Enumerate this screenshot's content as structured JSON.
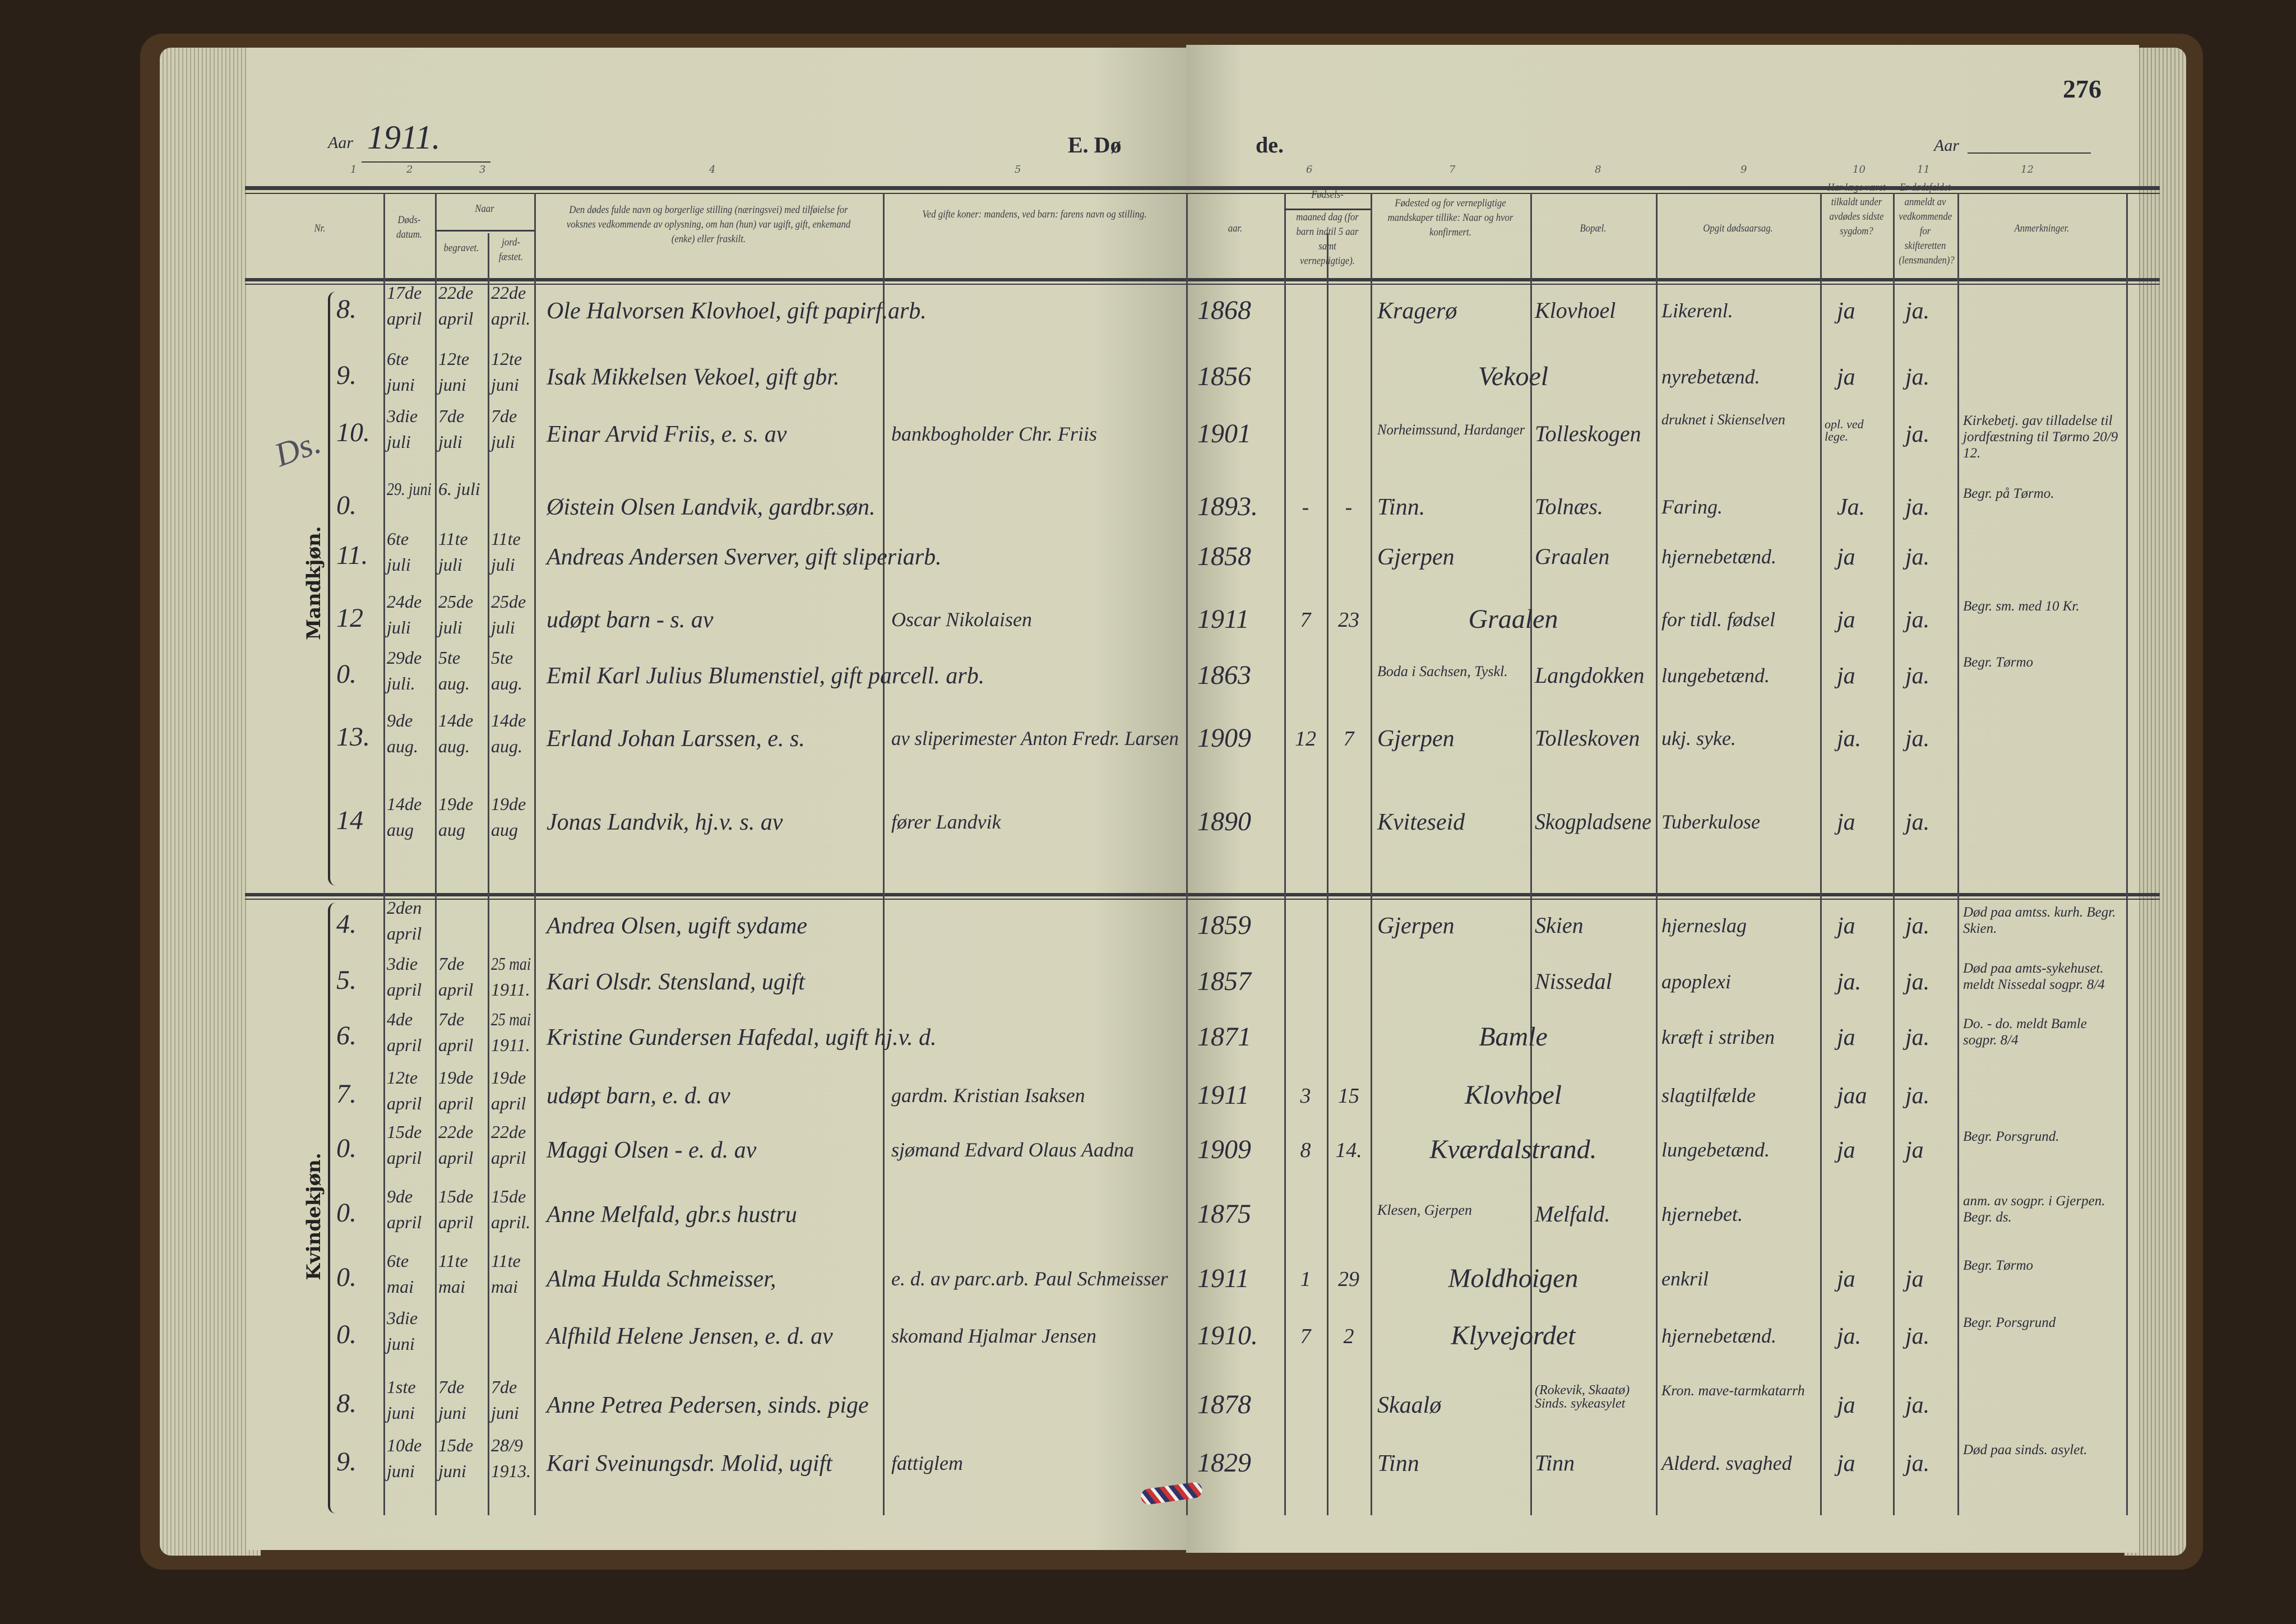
{
  "header": {
    "aar_label_left": "Aar",
    "year": "1911.",
    "title_part1": "E. Dø",
    "title_part2": "de.",
    "aar_label_right": "Aar",
    "page_number": "276",
    "column_numbers": [
      "1",
      "2",
      "3",
      "4",
      "5",
      "6",
      "7",
      "8",
      "9",
      "10",
      "11",
      "12"
    ]
  },
  "columns": {
    "nr": "Nr.",
    "death_date": "Døds-datum.",
    "when": "Naar",
    "buried": "begravet.",
    "confirmed": "jord-fæstet.",
    "name": "Den dødes fulde navn og borgerlige stilling (næringsvei) med tilføielse for voksnes vedkommende av oplysning, om han (hun) var ugift, gift, enkemand (enke) eller fraskilt.",
    "father": "Ved gifte koner: mandens, ved barn: farens navn og stilling.",
    "birth": "Fødsels-",
    "year": "aar.",
    "month_day": "maaned dag (for barn indtil 5 aar samt vernepligtige).",
    "birthplace": "Fødested og for vernepligtige mandskaper tillike: Naar og hvor konfirmert.",
    "residence": "Bopæl.",
    "cause": "Opgit dødsaarsag.",
    "doctor": "Har læge været tilkaldt under avdødes sidste sygdom?",
    "reported": "Er dødsfaldet anmeldt av vedkommende for skifteretten (lensmanden)?",
    "remarks": "Anmerkninger."
  },
  "sections": {
    "male_label": "Mandkjøn.",
    "female_label": "Kvindekjøn.",
    "margin_note": "Ds."
  },
  "male_rows": [
    {
      "nr": "8.",
      "death": [
        "17de",
        "april"
      ],
      "buried": [
        "22de",
        "april"
      ],
      "confirmed": [
        "22de",
        "april."
      ],
      "name": "Ole Halvorsen Klovhoel, gift papirf.arb.",
      "father": "",
      "year": "1868",
      "month": "",
      "day": "",
      "birthplace": "Kragerø",
      "residence": "Klovhoel",
      "cause": "Likerenl.",
      "doctor": "ja",
      "reported": "ja.",
      "remarks": ""
    },
    {
      "nr": "9.",
      "death": [
        "6te",
        "juni"
      ],
      "buried": [
        "12te",
        "juni"
      ],
      "confirmed": [
        "12te",
        "juni"
      ],
      "name": "Isak Mikkelsen Vekoel, gift gbr.",
      "father": "",
      "year": "1856",
      "month": "",
      "day": "",
      "place_span": "Vekoel",
      "cause": "nyrebetænd.",
      "doctor": "ja",
      "reported": "ja.",
      "remarks": ""
    },
    {
      "nr": "10.",
      "death": [
        "3die",
        "juli"
      ],
      "buried": [
        "7de",
        "juli"
      ],
      "confirmed": [
        "7de",
        "juli"
      ],
      "name": "Einar Arvid Friis, e. s. av",
      "father": "bankbogholder Chr. Friis",
      "year": "1901",
      "month": "",
      "day": "",
      "birthplace": "Norheimssund, Hardanger",
      "residence": "Tolleskogen",
      "cause": "druknet i Skienselven",
      "doctor": "opl. ved lege.",
      "reported": "ja.",
      "remarks": "Kirkebetj. gav tilladelse til jordfæstning til Tørmo 20/9 12."
    },
    {
      "nr": "0.",
      "death": [
        "29. juni",
        ""
      ],
      "buried": [
        "6. juli",
        ""
      ],
      "confirmed": [
        "",
        ""
      ],
      "name": "Øistein Olsen Landvik, gardbr.søn.",
      "father": "",
      "year": "1893.",
      "month": "-",
      "day": "-",
      "birthplace": "Tinn.",
      "residence": "Tolnæs.",
      "cause": "Faring.",
      "doctor": "Ja.",
      "reported": "ja.",
      "remarks": "Begr. på Tørmo."
    },
    {
      "nr": "11.",
      "death": [
        "6te",
        "juli"
      ],
      "buried": [
        "11te",
        "juli"
      ],
      "confirmed": [
        "11te",
        "juli"
      ],
      "name": "Andreas Andersen Sverver, gift sliperiarb.",
      "father": "",
      "year": "1858",
      "month": "",
      "day": "",
      "birthplace": "Gjerpen",
      "residence": "Graalen",
      "cause": "hjernebetænd.",
      "doctor": "ja",
      "reported": "ja.",
      "remarks": ""
    },
    {
      "nr": "12",
      "death": [
        "24de",
        "juli"
      ],
      "buried": [
        "25de",
        "juli"
      ],
      "confirmed": [
        "25de",
        "juli"
      ],
      "name": "udøpt barn - s. av",
      "father": "Oscar Nikolaisen",
      "year": "1911",
      "month": "7",
      "day": "23",
      "place_span": "Graalen",
      "cause": "for tidl. fødsel",
      "doctor": "ja",
      "reported": "ja.",
      "remarks": "Begr. sm. med 10 Kr."
    },
    {
      "nr": "0.",
      "death": [
        "29de",
        "juli."
      ],
      "buried": [
        "5te",
        "aug."
      ],
      "confirmed": [
        "5te",
        "aug."
      ],
      "name": "Emil Karl Julius Blumenstiel, gift parcell. arb.",
      "father": "",
      "year": "1863",
      "month": "",
      "day": "",
      "birthplace": "Boda i Sachsen, Tyskl.",
      "residence": "Langdokken",
      "cause": "lungebetænd.",
      "doctor": "ja",
      "reported": "ja.",
      "remarks": "Begr. Tørmo"
    },
    {
      "nr": "13.",
      "death": [
        "9de",
        "aug."
      ],
      "buried": [
        "14de",
        "aug."
      ],
      "confirmed": [
        "14de",
        "aug."
      ],
      "name": "Erland Johan Larssen, e. s.",
      "father": "av sliperimester Anton Fredr. Larsen",
      "year": "1909",
      "month": "12",
      "day": "7",
      "birthplace": "Gjerpen",
      "residence": "Tolleskoven",
      "cause": "ukj. syke.",
      "doctor": "ja.",
      "reported": "ja.",
      "remarks": ""
    },
    {
      "nr": "14",
      "death": [
        "14de",
        "aug"
      ],
      "buried": [
        "19de",
        "aug"
      ],
      "confirmed": [
        "19de",
        "aug"
      ],
      "name": "Jonas Landvik, hj.v. s. av",
      "father": "fører Landvik",
      "year": "1890",
      "month": "",
      "day": "",
      "birthplace": "Kviteseid",
      "residence": "Skogpladsene",
      "cause": "Tuberkulose",
      "doctor": "ja",
      "reported": "ja.",
      "remarks": ""
    }
  ],
  "female_rows": [
    {
      "nr": "4.",
      "death": [
        "2den",
        "april"
      ],
      "buried": [
        "",
        ""
      ],
      "confirmed": [
        "",
        ""
      ],
      "name": "Andrea Olsen, ugift sydame",
      "father": "",
      "year": "1859",
      "month": "",
      "day": "",
      "birthplace": "Gjerpen",
      "residence": "Skien",
      "cause": "hjerneslag",
      "doctor": "ja",
      "reported": "ja.",
      "remarks": "Død paa amtss. kurh. Begr. Skien."
    },
    {
      "nr": "5.",
      "death": [
        "3die",
        "april"
      ],
      "buried": [
        "7de",
        "april"
      ],
      "confirmed": [
        "25 mai",
        "1911."
      ],
      "name": "Kari Olsdr. Stensland, ugift",
      "father": "",
      "year": "1857",
      "month": "",
      "day": "",
      "birthplace": "",
      "residence": "Nissedal",
      "cause": "apoplexi",
      "doctor": "ja.",
      "reported": "ja.",
      "remarks": "Død paa amts-sykehuset. meldt Nissedal sogpr. 8/4"
    },
    {
      "nr": "6.",
      "death": [
        "4de",
        "april"
      ],
      "buried": [
        "7de",
        "april"
      ],
      "confirmed": [
        "25 mai",
        "1911."
      ],
      "name": "Kristine Gundersen Hafedal, ugift hj.v. d.",
      "father": "",
      "year": "1871",
      "month": "",
      "day": "",
      "place_span": "Bamle",
      "cause": "kræft i striben",
      "doctor": "ja",
      "reported": "ja.",
      "remarks": "Do. - do. meldt Bamle sogpr. 8/4"
    },
    {
      "nr": "7.",
      "death": [
        "12te",
        "april"
      ],
      "buried": [
        "19de",
        "april"
      ],
      "confirmed": [
        "19de",
        "april"
      ],
      "name": "udøpt barn, e. d. av",
      "father": "gardm. Kristian Isaksen",
      "year": "1911",
      "month": "3",
      "day": "15",
      "place_span": "Klovhoel",
      "cause": "slagtilfælde",
      "doctor": "jaa",
      "reported": "ja.",
      "remarks": ""
    },
    {
      "nr": "0.",
      "death": [
        "15de",
        "april"
      ],
      "buried": [
        "22de",
        "april"
      ],
      "confirmed": [
        "22de",
        "april"
      ],
      "name": "Maggi Olsen - e. d. av",
      "father": "sjømand Edvard Olaus Aadna",
      "year": "1909",
      "month": "8",
      "day": "14.",
      "place_span": "Kværdalstrand.",
      "cause": "lungebetænd.",
      "doctor": "ja",
      "reported": "ja",
      "remarks": "Begr. Porsgrund."
    },
    {
      "nr": "0.",
      "death": [
        "9de",
        "april"
      ],
      "buried": [
        "15de",
        "april"
      ],
      "confirmed": [
        "15de",
        "april."
      ],
      "name": "Anne Melfald, gbr.s hustru",
      "father": "",
      "year": "1875",
      "month": "",
      "day": "",
      "birthplace": "Klesen, Gjerpen",
      "residence": "Melfald.",
      "cause": "hjernebet.",
      "doctor": "",
      "reported": "",
      "remarks": "anm. av sogpr. i Gjerpen. Begr. ds."
    },
    {
      "nr": "0.",
      "death": [
        "6te",
        "mai"
      ],
      "buried": [
        "11te",
        "mai"
      ],
      "confirmed": [
        "11te",
        "mai"
      ],
      "name": "Alma Hulda Schmeisser,",
      "father": "e. d. av parc.arb. Paul Schmeisser",
      "year": "1911",
      "month": "1",
      "day": "29",
      "place_span": "Moldhoigen",
      "cause": "enkril",
      "doctor": "ja",
      "reported": "ja",
      "remarks": "Begr. Tørmo"
    },
    {
      "nr": "0.",
      "death": [
        "3die",
        "juni"
      ],
      "buried": [
        "",
        ""
      ],
      "confirmed": [
        "",
        ""
      ],
      "name": "Alfhild Helene Jensen, e. d. av",
      "father": "skomand Hjalmar Jensen",
      "year": "1910.",
      "month": "7",
      "day": "2",
      "place_span": "Klyvejordet",
      "cause": "hjernebetænd.",
      "doctor": "ja.",
      "reported": "ja.",
      "remarks": "Begr. Porsgrund"
    },
    {
      "nr": "8.",
      "death": [
        "1ste",
        "juni"
      ],
      "buried": [
        "7de",
        "juni"
      ],
      "confirmed": [
        "7de",
        "juni"
      ],
      "name": "Anne Petrea Pedersen, sinds. pige",
      "father": "",
      "year": "1878",
      "month": "",
      "day": "",
      "birthplace": "Skaalø",
      "residence": "(Rokevik, Skaatø) Sinds. sykeasylet",
      "cause": "Kron. mave-tarmkatarrh",
      "doctor": "ja",
      "reported": "ja.",
      "remarks": ""
    },
    {
      "nr": "9.",
      "death": [
        "10de",
        "juni"
      ],
      "buried": [
        "15de",
        "juni"
      ],
      "confirmed": [
        "28/9",
        "1913."
      ],
      "name": "Kari Sveinungsdr. Molid, ugift",
      "father": "fattiglem",
      "year": "1829",
      "month": "",
      "day": "",
      "birthplace": "Tinn",
      "residence": "Tinn",
      "cause": "Alderd. svaghed",
      "doctor": "ja",
      "reported": "ja.",
      "remarks": "Død paa sinds. asylet."
    }
  ]
}
